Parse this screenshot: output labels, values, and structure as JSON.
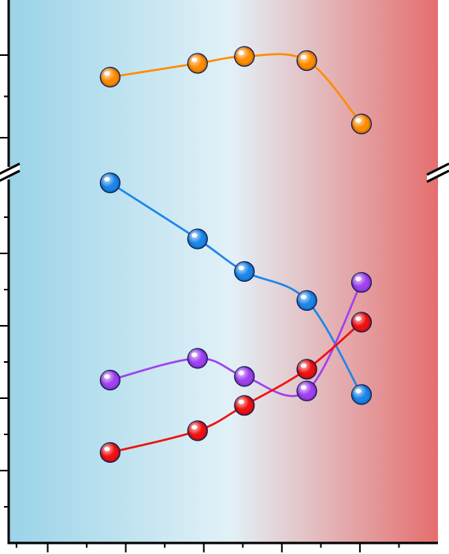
{
  "chart_data": {
    "type": "line",
    "title": "",
    "xlabel": "",
    "ylabel": "",
    "x_range": [
      -3.5,
      24
    ],
    "axis_break": true,
    "grid": false,
    "legend": "none",
    "background_gradient": {
      "left": "#9ad3e8",
      "middle": "#e2f1f7",
      "right": "#e56e6e"
    },
    "panels": {
      "upper": {
        "ylim": [
          0,
          6
        ],
        "major_ticks": [
          1,
          4
        ],
        "minor_ticks": [
          2.5
        ]
      },
      "lower": {
        "ylim": [
          0,
          10
        ],
        "major_ticks": [
          2,
          4,
          6,
          8
        ],
        "minor_ticks": [
          1,
          3,
          5,
          7,
          9
        ]
      }
    },
    "x_major_ticks": [
      -1,
      4,
      9,
      14,
      19
    ],
    "x_minor_ticks": [
      -3,
      1.5,
      6.5,
      11.5,
      16.5,
      21.5
    ],
    "series": [
      {
        "key": "orange",
        "panel": "upper",
        "color": "#ff8c00",
        "x": [
          3,
          8.6,
          11.6,
          15.6,
          19.1
        ],
        "y": [
          3.2,
          3.7,
          3.95,
          3.8,
          1.5
        ]
      },
      {
        "key": "blue",
        "panel": "lower",
        "color": "#1a86e8",
        "x": [
          3,
          8.6,
          11.6,
          15.6,
          19.1
        ],
        "y": [
          9.95,
          8.4,
          7.5,
          6.7,
          4.1
        ]
      },
      {
        "key": "purple",
        "panel": "lower",
        "color": "#a040f0",
        "x": [
          3,
          8.6,
          11.6,
          15.6,
          19.1
        ],
        "y": [
          4.5,
          5.1,
          4.6,
          4.2,
          7.2
        ]
      },
      {
        "key": "red",
        "panel": "lower",
        "color": "#ee1111",
        "x": [
          3,
          8.6,
          11.6,
          15.6,
          19.1
        ],
        "y": [
          2.5,
          3.1,
          3.8,
          4.8,
          6.1
        ]
      }
    ]
  }
}
